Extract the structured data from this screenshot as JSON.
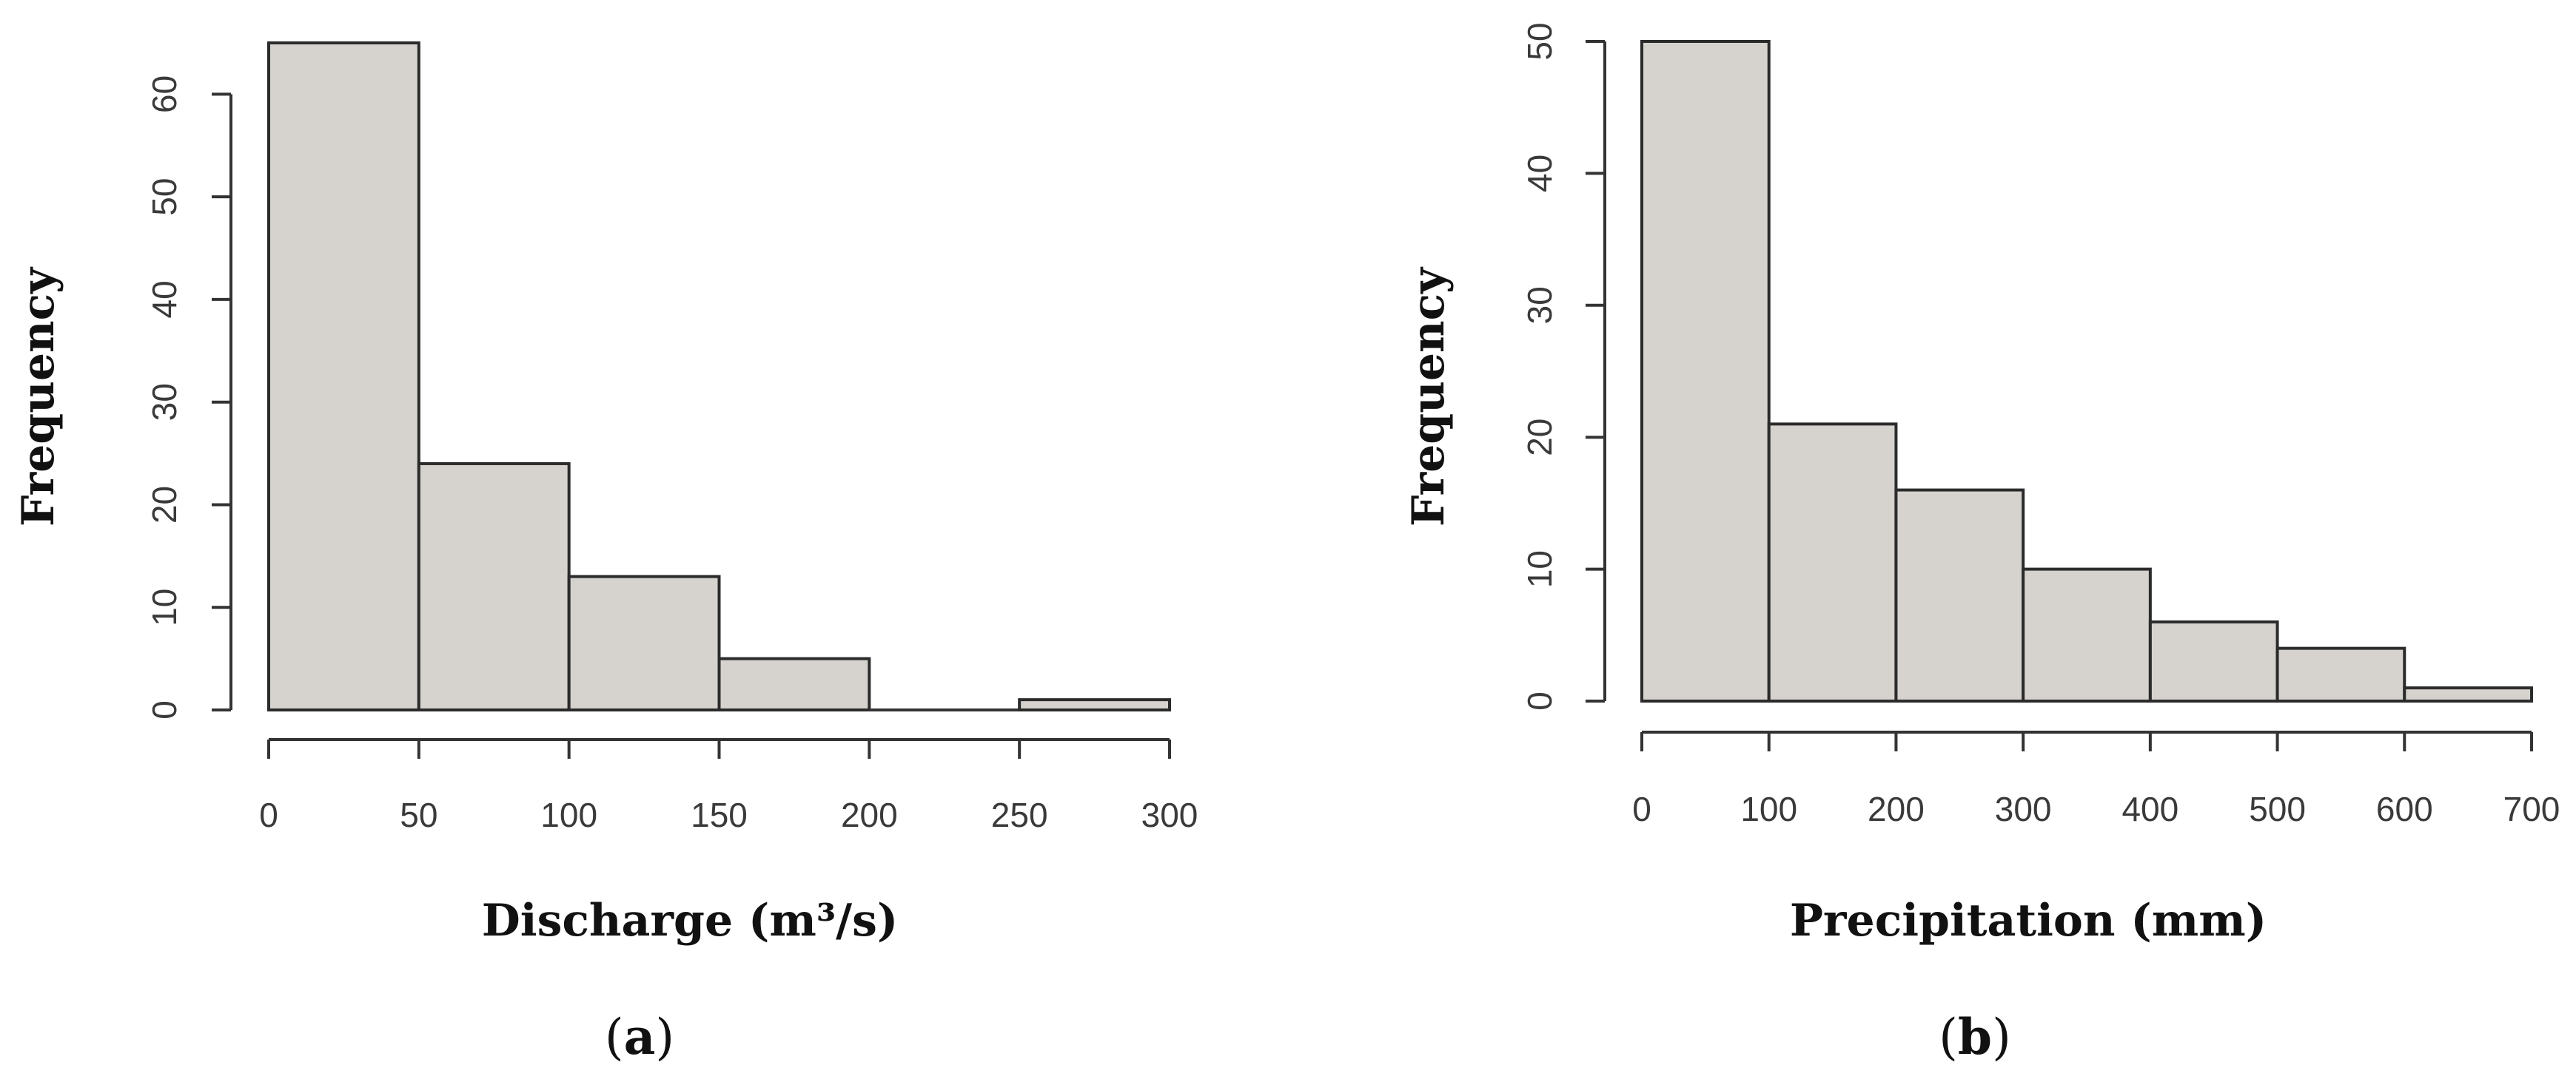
{
  "chart_data": [
    {
      "type": "bar",
      "panel_label_parts": [
        "(",
        "a",
        ")"
      ],
      "xlabel": "Discharge (m³/s)",
      "ylabel": "Frequency",
      "bins": [
        [
          0,
          50
        ],
        [
          50,
          100
        ],
        [
          100,
          150
        ],
        [
          150,
          200
        ],
        [
          200,
          250
        ],
        [
          250,
          300
        ]
      ],
      "values": [
        65,
        24,
        13,
        5,
        0,
        1
      ],
      "xlim": [
        0,
        300
      ],
      "ylim": [
        0,
        65
      ],
      "xticks": [
        0,
        50,
        100,
        150,
        200,
        250,
        300
      ],
      "yticks": [
        0,
        10,
        20,
        30,
        40,
        50,
        60
      ],
      "grid": false
    },
    {
      "type": "bar",
      "panel_label_parts": [
        "(",
        "b",
        ")"
      ],
      "xlabel": "Precipitation (mm)",
      "ylabel": "Frequency",
      "bins": [
        [
          0,
          100
        ],
        [
          100,
          200
        ],
        [
          200,
          300
        ],
        [
          300,
          400
        ],
        [
          400,
          500
        ],
        [
          500,
          600
        ],
        [
          600,
          700
        ]
      ],
      "values": [
        50,
        21,
        16,
        10,
        6,
        4,
        1
      ],
      "xlim": [
        0,
        700
      ],
      "ylim": [
        0,
        50
      ],
      "xticks": [
        0,
        100,
        200,
        300,
        400,
        500,
        600,
        700
      ],
      "yticks": [
        0,
        10,
        20,
        30,
        40,
        50
      ],
      "grid": false
    }
  ]
}
